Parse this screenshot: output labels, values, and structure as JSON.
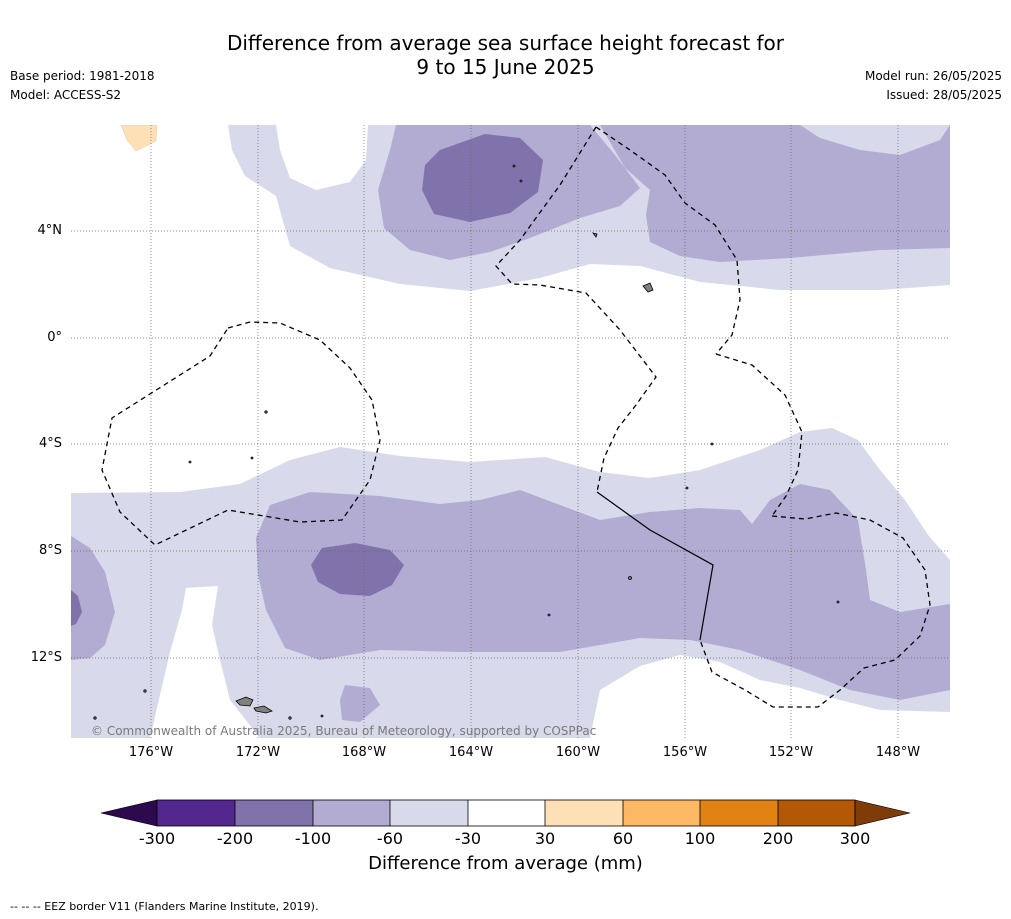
{
  "title_line1": "Difference from average sea surface height forecast for",
  "title_line2": "9 to 15 June 2025",
  "base_period": "Base period: 1981-2018",
  "model": "Model: ACCESS-S2",
  "model_run": "Model run: 26/05/2025",
  "issued": "Issued: 28/05/2025",
  "copyright": "© Commonwealth of Australia 2025, Bureau of Meteorology, supported by COSPPac",
  "footer_note": "--  --  -- EEZ border V11 (Flanders Marine Institute, 2019).",
  "lat_labels": [
    "4°N",
    "0°",
    "4°S",
    "8°S",
    "12°S"
  ],
  "lon_labels": [
    "176°W",
    "172°W",
    "168°W",
    "164°W",
    "160°W",
    "156°W",
    "152°W",
    "148°W"
  ],
  "colorbar": {
    "title": "Difference from average (mm)",
    "tick_labels": [
      "-300",
      "-200",
      "-100",
      "-60",
      "-30",
      "30",
      "60",
      "100",
      "200",
      "300"
    ],
    "colors": {
      "under": "#2d0a4e",
      "c1": "#54278f",
      "c2": "#8073ac",
      "c3": "#b2abd2",
      "c4": "#d8daeb",
      "c5": "#ffffff",
      "c6": "#fee0b6",
      "c7": "#fdb863",
      "c8": "#e08214",
      "c9": "#b35806",
      "over": "#7f3b08"
    }
  }
}
